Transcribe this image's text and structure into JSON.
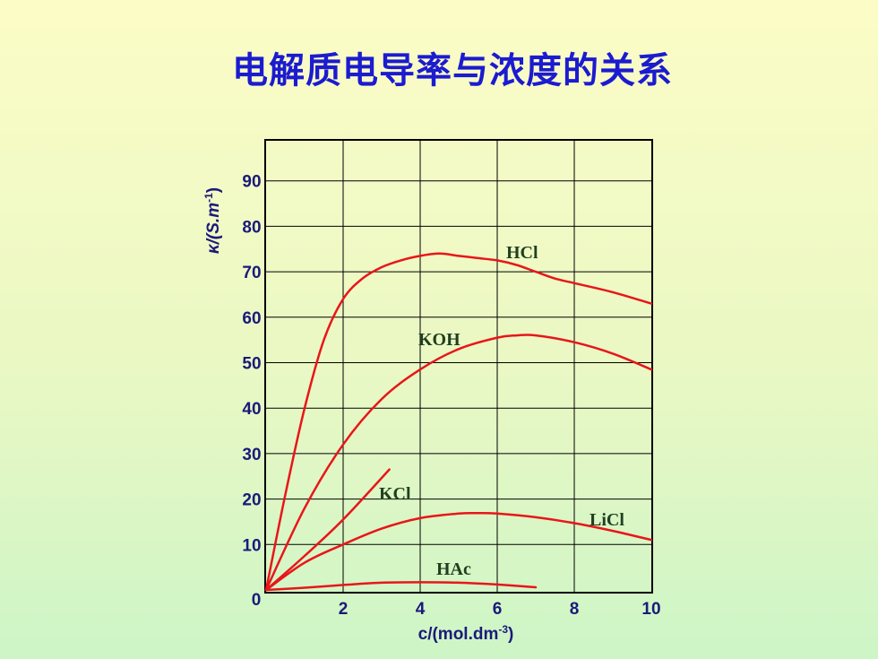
{
  "title": "电解质电导率与浓度的关系",
  "chart_data": {
    "type": "line",
    "xlabel": "c/(mol.dm",
    "xlabel_sup": "-3",
    "xlabel_tail": ")",
    "ylabel": "κ/(S.m",
    "ylabel_sup": "-1",
    "ylabel_tail": ")",
    "xlim": [
      0,
      10
    ],
    "ylim": [
      0,
      100
    ],
    "x_ticks": [
      2,
      4,
      6,
      8,
      10
    ],
    "y_ticks": [
      10,
      20,
      30,
      40,
      50,
      60,
      70,
      80,
      90
    ],
    "origin_label": "0",
    "grid": true,
    "series": [
      {
        "name": "HCl",
        "color": "#e8161a",
        "x": [
          0,
          0.5,
          1,
          1.5,
          2,
          2.5,
          3,
          3.5,
          4,
          4.5,
          5,
          5.5,
          6,
          6.5,
          7,
          7.5,
          8,
          9,
          10
        ],
        "y": [
          0,
          21,
          40,
          55,
          64,
          68.5,
          71,
          72.5,
          73.5,
          74,
          73.5,
          73,
          72.5,
          71.5,
          70,
          68.5,
          67.5,
          65.5,
          63
        ]
      },
      {
        "name": "KOH",
        "color": "#e8161a",
        "x": [
          0,
          1,
          2,
          3,
          4,
          5,
          6,
          6.5,
          7,
          8,
          9,
          10
        ],
        "y": [
          0,
          18,
          32,
          42,
          48.5,
          53,
          55.5,
          56,
          56,
          54.5,
          52,
          48.5
        ]
      },
      {
        "name": "KCl",
        "color": "#e8161a",
        "x": [
          0,
          1,
          2,
          3.2
        ],
        "y": [
          0,
          7.5,
          15.5,
          26.5
        ]
      },
      {
        "name": "LiCl",
        "color": "#e8161a",
        "x": [
          0,
          1,
          2,
          3,
          4,
          5,
          5.5,
          6,
          7,
          8,
          9,
          10
        ],
        "y": [
          0,
          6,
          10,
          13.5,
          15.8,
          16.8,
          16.9,
          16.8,
          16,
          14.7,
          13,
          11
        ]
      },
      {
        "name": "HAc",
        "color": "#e8161a",
        "x": [
          0,
          1,
          2,
          3,
          4,
          5,
          6,
          7
        ],
        "y": [
          0,
          0.5,
          1.1,
          1.6,
          1.7,
          1.6,
          1.2,
          0.6
        ]
      }
    ]
  }
}
